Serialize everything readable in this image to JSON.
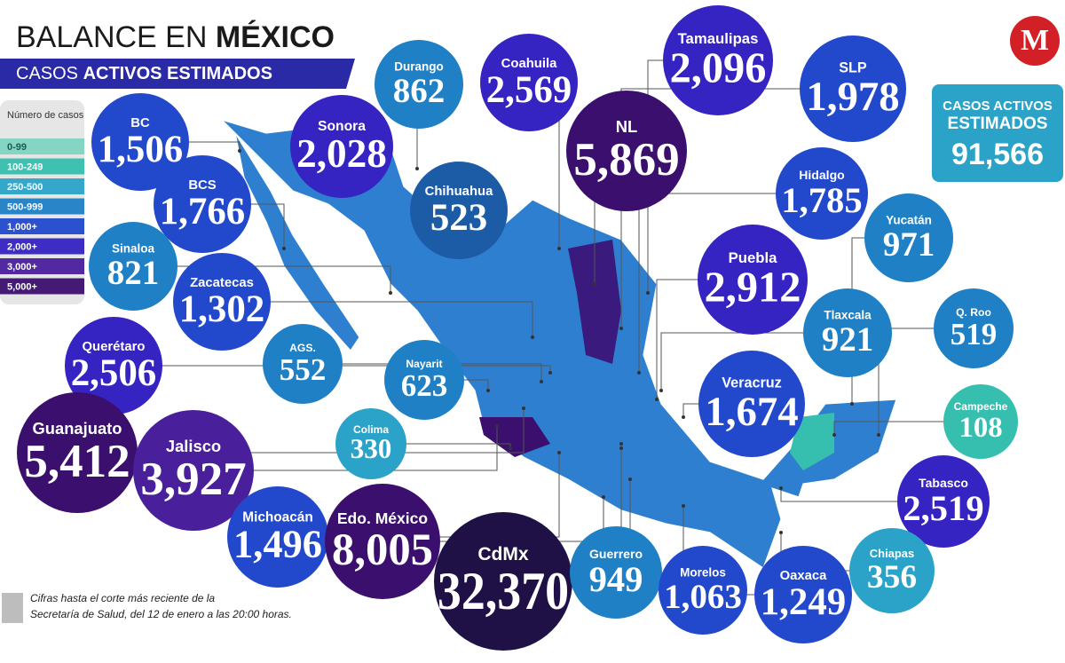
{
  "header": {
    "title_light": "BALANCE EN ",
    "title_bold": "MÉXICO",
    "subtitle_light": "CASOS ",
    "subtitle_bold": "ACTIVOS ESTIMADOS"
  },
  "legend": {
    "title": "Número de casos",
    "items": [
      {
        "label": "0-99",
        "color": "#7fd4c1"
      },
      {
        "label": "100-249",
        "color": "#36bfae"
      },
      {
        "label": "250-500",
        "color": "#2ba3c9"
      },
      {
        "label": "500-999",
        "color": "#1f80c6"
      },
      {
        "label": "1,000+",
        "color": "#2249cc"
      },
      {
        "label": "2,000+",
        "color": "#3523c2"
      },
      {
        "label": "3,000+",
        "color": "#4a1f9c"
      },
      {
        "label": "5,000+",
        "color": "#3b0f6e"
      }
    ]
  },
  "total": {
    "label": "CASOS ACTIVOS ESTIMADOS",
    "value": "91,566"
  },
  "states": [
    {
      "name": "BC",
      "value": "1,506",
      "color": "#2249cc"
    },
    {
      "name": "Durango",
      "value": "862",
      "color": "#1f80c6"
    },
    {
      "name": "Coahuila",
      "value": "2,569",
      "color": "#3523c2"
    },
    {
      "name": "Tamaulipas",
      "value": "2,096",
      "color": "#3523c2"
    },
    {
      "name": "SLP",
      "value": "1,978",
      "color": "#2249cc"
    },
    {
      "name": "Sonora",
      "value": "2,028",
      "color": "#3523c2"
    },
    {
      "name": "NL",
      "value": "5,869",
      "color": "#3b0f6e"
    },
    {
      "name": "Chihuahua",
      "value": "523",
      "color": "#1c5ba6"
    },
    {
      "name": "Hidalgo",
      "value": "1,785",
      "color": "#2249cc"
    },
    {
      "name": "Yucatán",
      "value": "971",
      "color": "#1f80c6"
    },
    {
      "name": "BCS",
      "value": "1,766",
      "color": "#2249cc"
    },
    {
      "name": "Puebla",
      "value": "2,912",
      "color": "#3523c2"
    },
    {
      "name": "Sinaloa",
      "value": "821",
      "color": "#1f80c6"
    },
    {
      "name": "Zacatecas",
      "value": "1,302",
      "color": "#2249cc"
    },
    {
      "name": "Q. Roo",
      "value": "519",
      "color": "#1f80c6"
    },
    {
      "name": "Tlaxcala",
      "value": "921",
      "color": "#1f80c6"
    },
    {
      "name": "AGS.",
      "value": "552",
      "color": "#1f80c6"
    },
    {
      "name": "Nayarit",
      "value": "623",
      "color": "#1f80c6"
    },
    {
      "name": "Querétaro",
      "value": "2,506",
      "color": "#3523c2"
    },
    {
      "name": "Veracruz",
      "value": "1,674",
      "color": "#2249cc"
    },
    {
      "name": "Campeche",
      "value": "108",
      "color": "#36bfae"
    },
    {
      "name": "Colima",
      "value": "330",
      "color": "#2ba3c9"
    },
    {
      "name": "Guanajuato",
      "value": "5,412",
      "color": "#3b0f6e"
    },
    {
      "name": "Jalisco",
      "value": "3,927",
      "color": "#4a1f9c"
    },
    {
      "name": "Tabasco",
      "value": "2,519",
      "color": "#3523c2"
    },
    {
      "name": "Michoacán",
      "value": "1,496",
      "color": "#2249cc"
    },
    {
      "name": "Edo. México",
      "value": "8,005",
      "color": "#3b0f6e"
    },
    {
      "name": "CdMx",
      "value": "32,370",
      "color": "#1f1045"
    },
    {
      "name": "Guerrero",
      "value": "949",
      "color": "#1f80c6"
    },
    {
      "name": "Morelos",
      "value": "1,063",
      "color": "#2249cc"
    },
    {
      "name": "Oaxaca",
      "value": "1,249",
      "color": "#2249cc"
    },
    {
      "name": "Chiapas",
      "value": "356",
      "color": "#2ba3c9"
    }
  ],
  "footnote": {
    "line1": "Cifras hasta el corte más reciente de la",
    "line2": "Secretaría de Salud, del 12 de enero a las 20:00 horas."
  }
}
